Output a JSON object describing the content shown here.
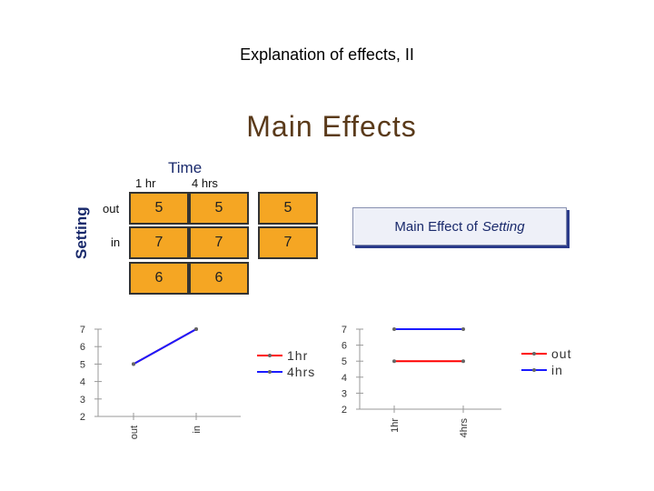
{
  "slide": {
    "title": "Explanation of effects, II",
    "heading": "Main Effects"
  },
  "table": {
    "factor_columns": "Time",
    "factor_rows": "Setting",
    "col_headers": [
      "1 hr",
      "4 hrs"
    ],
    "row_headers": [
      "out",
      "in"
    ],
    "cells": [
      [
        "5",
        "5",
        "5"
      ],
      [
        "7",
        "7",
        "7"
      ],
      [
        "6",
        "6"
      ]
    ]
  },
  "callout": {
    "prefix": "Main Effect of",
    "emphasis": "Setting"
  },
  "chart_data": [
    {
      "type": "line",
      "categories": [
        "out",
        "in"
      ],
      "series": [
        {
          "name": "1hr",
          "values": [
            5,
            7
          ],
          "color": "#ff0000"
        },
        {
          "name": "4hrs",
          "values": [
            5,
            7
          ],
          "color": "#1a1aff"
        }
      ],
      "ylim": [
        2,
        7
      ],
      "yticks": [
        "7",
        "6",
        "5",
        "4",
        "3",
        "2"
      ],
      "legend": "right"
    },
    {
      "type": "line",
      "categories": [
        "1hr",
        "4hrs"
      ],
      "series": [
        {
          "name": "out",
          "values": [
            5,
            5
          ],
          "color": "#ff0000"
        },
        {
          "name": "in",
          "values": [
            7,
            7
          ],
          "color": "#1a1aff"
        }
      ],
      "ylim": [
        2,
        7
      ],
      "yticks": [
        "7",
        "6",
        "5",
        "4",
        "3",
        "2"
      ],
      "legend": "right"
    }
  ]
}
